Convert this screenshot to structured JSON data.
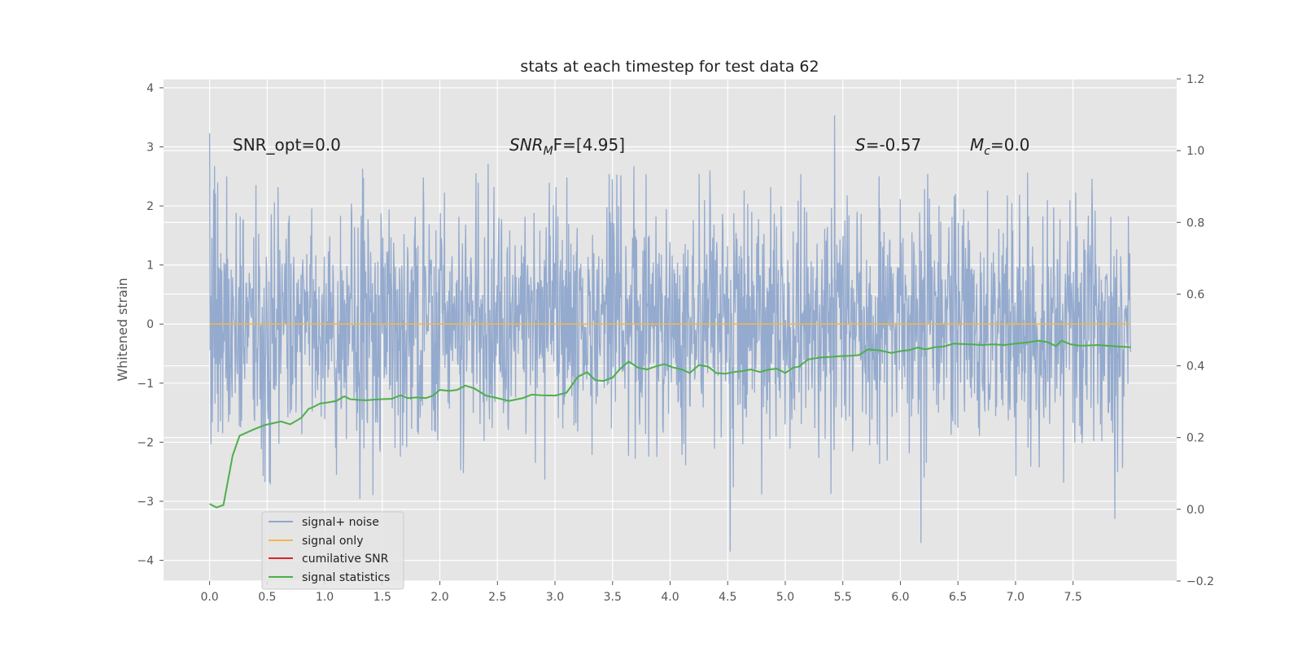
{
  "chart_data": {
    "type": "line",
    "title": "stats at each timestep for test data 62",
    "ylabel": "Whitened strain",
    "ylabel_right": "",
    "xlim": [
      -0.4,
      8.4
    ],
    "ylim": [
      -4.35,
      4.15
    ],
    "ylim_right": [
      -0.2,
      1.2
    ],
    "x_ticks": [
      0.0,
      0.5,
      1.0,
      1.5,
      2.0,
      2.5,
      3.0,
      3.5,
      4.0,
      4.5,
      5.0,
      5.5,
      6.0,
      6.5,
      7.0,
      7.5
    ],
    "x_tick_labels": [
      "0.0",
      "0.5",
      "1.0",
      "1.5",
      "2.0",
      "2.5",
      "3.0",
      "3.5",
      "4.0",
      "4.5",
      "5.0",
      "5.5",
      "6.0",
      "6.5",
      "7.0",
      "7.5"
    ],
    "y_ticks": [
      -4,
      -3,
      -2,
      -1,
      0,
      1,
      2,
      3,
      4
    ],
    "y_tick_labels": [
      "−4",
      "−3",
      "−2",
      "−1",
      "0",
      "1",
      "2",
      "3",
      "4"
    ],
    "y_ticks_right": [
      -0.2,
      0.0,
      0.2,
      0.4,
      0.6,
      0.8,
      1.0,
      1.2
    ],
    "y_tick_labels_right": [
      "−0.2",
      "0.0",
      "0.2",
      "0.4",
      "0.6",
      "0.8",
      "1.0",
      "1.2"
    ],
    "grid": true,
    "legend_position": "lower-left",
    "legend": [
      {
        "label": "signal+ noise",
        "color": "#8fa6cc"
      },
      {
        "label": "signal only",
        "color": "#f2b84b"
      },
      {
        "label": "cumilative SNR",
        "color": "#d62728"
      },
      {
        "label": "signal statistics",
        "color": "#4daf4a"
      }
    ],
    "annotations": {
      "snr_opt": "SNR_opt=0.0",
      "snr_mf_main": "SNR",
      "snr_mf_sub": "M",
      "snr_mf_rest": "F=[4.95]",
      "s_main": "S",
      "s_rest": "=-0.57",
      "mc_main": "M",
      "mc_sub": "c",
      "mc_rest": "=0.0"
    },
    "series": [
      {
        "name": "signal+ noise",
        "color": "#8fa6cc",
        "axis": "left",
        "x_range": [
          0.0,
          8.0
        ],
        "sample_count": 2048,
        "seed": 62,
        "std": 1.0,
        "y_min_max": [
          -3.97,
          3.73
        ]
      },
      {
        "name": "signal only",
        "color": "#f2b84b",
        "axis": "left",
        "x": [
          0.0,
          8.0
        ],
        "y": [
          0.0,
          0.0
        ]
      },
      {
        "name": "signal statistics",
        "color": "#4daf4a",
        "axis": "right",
        "x": [
          0.0,
          0.06,
          0.12,
          0.2,
          0.26,
          0.33,
          0.4,
          0.48,
          0.55,
          0.62,
          0.7,
          0.76,
          0.8,
          0.86,
          0.9,
          0.96,
          1.03,
          1.1,
          1.17,
          1.22,
          1.3,
          1.36,
          1.44,
          1.5,
          1.58,
          1.66,
          1.72,
          1.8,
          1.88,
          1.94,
          2.0,
          2.08,
          2.15,
          2.22,
          2.3,
          2.4,
          2.5,
          2.6,
          2.72,
          2.8,
          2.88,
          3.0,
          3.1,
          3.2,
          3.28,
          3.35,
          3.42,
          3.5,
          3.56,
          3.64,
          3.72,
          3.8,
          3.87,
          3.95,
          4.02,
          4.1,
          4.17,
          4.25,
          4.33,
          4.4,
          4.48,
          4.56,
          4.62,
          4.7,
          4.78,
          4.86,
          4.93,
          5.0,
          5.07,
          5.12,
          5.2,
          5.3,
          5.4,
          5.48,
          5.56,
          5.64,
          5.72,
          5.82,
          5.92,
          6.0,
          6.08,
          6.15,
          6.22,
          6.3,
          6.38,
          6.46,
          6.54,
          6.62,
          6.7,
          6.8,
          6.9,
          7.0,
          7.1,
          7.2,
          7.28,
          7.35,
          7.4,
          7.48,
          7.56,
          7.64,
          7.72,
          7.8,
          7.88,
          7.95,
          8.0
        ],
        "y": [
          0.015,
          0.005,
          0.012,
          0.15,
          0.205,
          0.215,
          0.225,
          0.235,
          0.24,
          0.245,
          0.237,
          0.248,
          0.256,
          0.28,
          0.285,
          0.295,
          0.298,
          0.302,
          0.315,
          0.307,
          0.305,
          0.304,
          0.306,
          0.307,
          0.308,
          0.318,
          0.31,
          0.312,
          0.31,
          0.317,
          0.333,
          0.33,
          0.333,
          0.345,
          0.337,
          0.317,
          0.31,
          0.302,
          0.31,
          0.32,
          0.318,
          0.317,
          0.325,
          0.37,
          0.382,
          0.36,
          0.358,
          0.367,
          0.39,
          0.412,
          0.395,
          0.39,
          0.398,
          0.405,
          0.396,
          0.39,
          0.38,
          0.402,
          0.398,
          0.38,
          0.378,
          0.383,
          0.385,
          0.39,
          0.383,
          0.39,
          0.392,
          0.38,
          0.395,
          0.398,
          0.418,
          0.423,
          0.425,
          0.427,
          0.428,
          0.43,
          0.446,
          0.443,
          0.436,
          0.441,
          0.444,
          0.451,
          0.446,
          0.452,
          0.454,
          0.462,
          0.461,
          0.46,
          0.458,
          0.46,
          0.458,
          0.462,
          0.465,
          0.47,
          0.466,
          0.455,
          0.47,
          0.46,
          0.456,
          0.457,
          0.458,
          0.456,
          0.454,
          0.453,
          0.452
        ]
      }
    ]
  }
}
